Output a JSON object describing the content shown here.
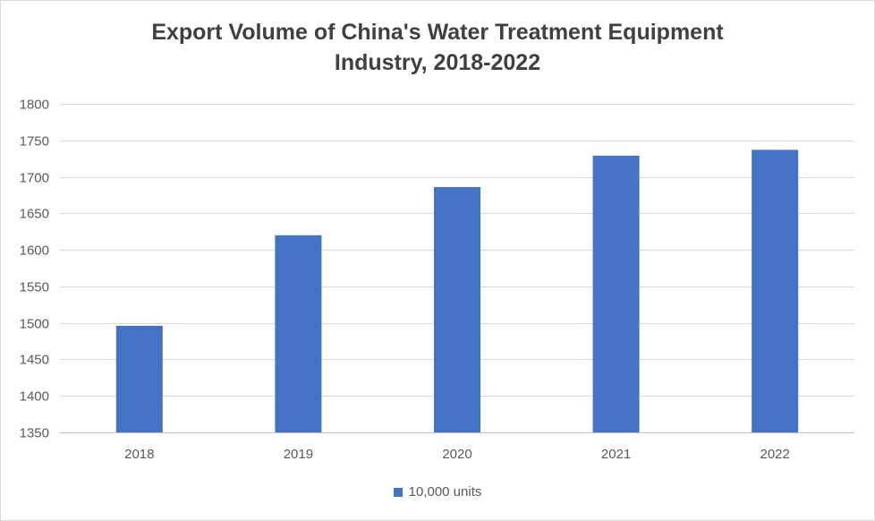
{
  "chart_data": {
    "type": "bar",
    "title_lines": [
      "Export Volume of China's Water Treatment Equipment",
      "Industry, 2018-2022"
    ],
    "categories": [
      "2018",
      "2019",
      "2020",
      "2021",
      "2022"
    ],
    "series": [
      {
        "name": "10,000 units",
        "values": [
          1496,
          1620,
          1686,
          1729,
          1737
        ],
        "color": "#4472c4"
      }
    ],
    "ylim": [
      1350,
      1800
    ],
    "yticks": [
      1350,
      1400,
      1450,
      1500,
      1550,
      1600,
      1650,
      1700,
      1750,
      1800
    ],
    "grid": true,
    "legend_position": "bottom"
  }
}
